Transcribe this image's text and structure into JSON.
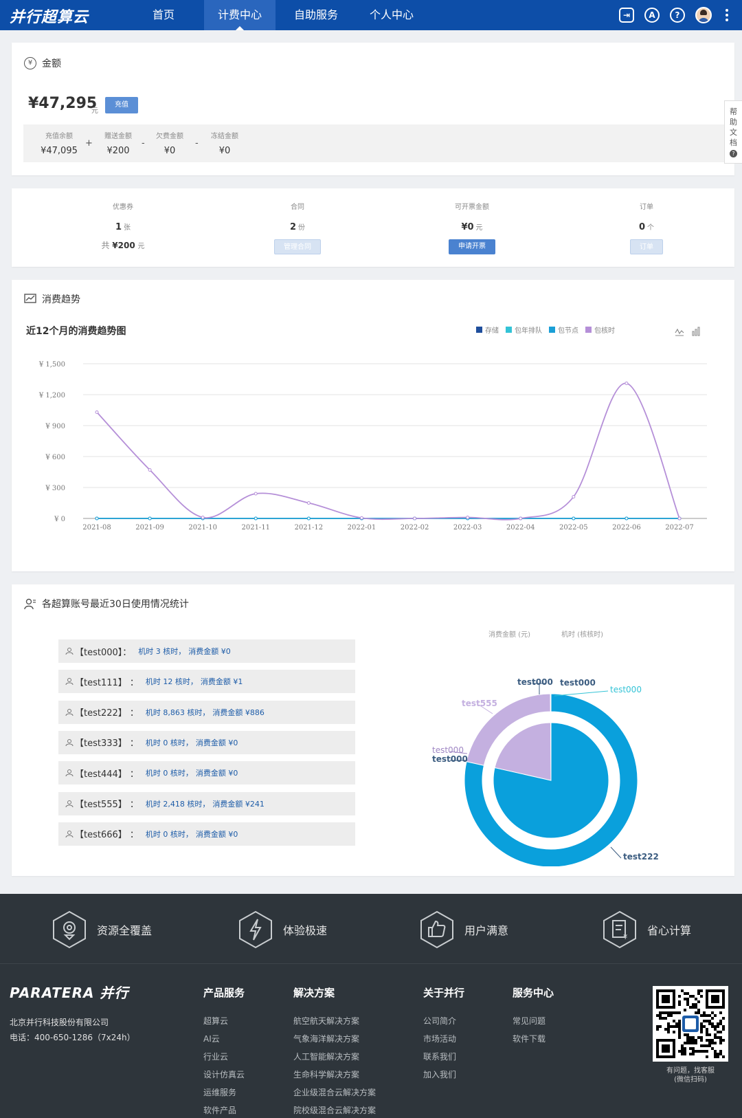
{
  "header": {
    "logo": "并行超算云",
    "nav": [
      "首页",
      "计费中心",
      "自助服务",
      "个人中心"
    ],
    "active_nav": "计费中心",
    "icons": [
      "login-icon",
      "alert-icon",
      "help-icon",
      "avatar",
      "more-icon"
    ]
  },
  "amount": {
    "title": "金额",
    "balance": "¥47,295",
    "unit": "元",
    "recharge": "充值",
    "items": [
      {
        "label": "充值余额",
        "value": "¥47,095"
      },
      {
        "label": "赠送金额",
        "value": "¥200"
      },
      {
        "label": "欠费金额",
        "value": "¥0"
      },
      {
        "label": "冻结金额",
        "value": "¥0"
      }
    ],
    "ops": [
      "+",
      "-",
      "-"
    ]
  },
  "help_tab": "帮助文档",
  "stats": [
    {
      "label": "优惠券",
      "value": "1",
      "unit": "张",
      "extra_prefix": "共",
      "extra_value": "¥200",
      "extra_unit": "元"
    },
    {
      "label": "合同",
      "value": "2",
      "unit": "份",
      "button": "管理合同"
    },
    {
      "label": "可开票金额",
      "value": "¥0",
      "unit": "元",
      "button": "申请开票"
    },
    {
      "label": "订单",
      "value": "0",
      "unit": "个",
      "button": "订单"
    }
  ],
  "trend": {
    "section_title": "消费趋势",
    "chart_title": "近12个月的消费趋势图"
  },
  "chart_data": {
    "type": "line",
    "title": "近12个月的消费趋势图",
    "categories": [
      "2021-08",
      "2021-09",
      "2021-10",
      "2021-11",
      "2021-12",
      "2022-01",
      "2022-02",
      "2022-03",
      "2022-04",
      "2022-05",
      "2022-06",
      "2022-07"
    ],
    "y_ticks": [
      "¥ 1,500",
      "¥ 1,200",
      "¥ 900",
      "¥ 600",
      "¥ 300",
      "¥ 0"
    ],
    "ylim": [
      0,
      1500
    ],
    "grid": true,
    "legend_position": "top-right",
    "series": [
      {
        "name": "存储",
        "color": "#1f4e9c",
        "values": [
          0,
          0,
          0,
          0,
          0,
          0,
          0,
          0,
          0,
          0,
          0,
          0
        ]
      },
      {
        "name": "包年排队",
        "color": "#33c3d6",
        "values": [
          0,
          0,
          0,
          0,
          0,
          0,
          0,
          0,
          0,
          0,
          0,
          0
        ]
      },
      {
        "name": "包节点",
        "color": "#1a9fd6",
        "values": [
          0,
          0,
          0,
          0,
          0,
          0,
          0,
          0,
          0,
          0,
          0,
          0
        ]
      },
      {
        "name": "包核时",
        "color": "#b58fd8",
        "values": [
          1030,
          470,
          10,
          240,
          150,
          5,
          0,
          10,
          0,
          210,
          1310,
          0
        ]
      }
    ]
  },
  "usage": {
    "title": "各超算账号最近30日使用情况统计",
    "rows": [
      {
        "name": "【test000】：",
        "hours": "机时 3 核时，",
        "cost": "消费金额 ¥0"
      },
      {
        "name": "【test111】 ：",
        "hours": "机时 12 核时，",
        "cost": "消费金额 ¥1"
      },
      {
        "name": "【test222】 ：",
        "hours": "机时 8,863 核时，",
        "cost": "消费金额 ¥886"
      },
      {
        "name": "【test333】 ：",
        "hours": "机时 0 核时，",
        "cost": "消费金额 ¥0"
      },
      {
        "name": "【test444】 ：",
        "hours": "机时 0 核时，",
        "cost": "消费金额 ¥0"
      },
      {
        "name": "【test555】 ：",
        "hours": "机时 2,418 核时，",
        "cost": "消费金额 ¥241"
      },
      {
        "name": "【test666】 ：",
        "hours": "机时 0 核时，",
        "cost": "消费金额 ¥0"
      }
    ],
    "pie_legend": [
      "消费金额 (元)",
      "机时 (核核时)"
    ],
    "pie": {
      "inner_name": "消费金额 (元)",
      "outer_name": "机时 (核核时)",
      "inner": [
        {
          "label": "test222",
          "value": 886,
          "color": "#0aa0dc"
        },
        {
          "label": "test555",
          "value": 241,
          "color": "#c4b0e0"
        },
        {
          "label": "test111",
          "value": 1,
          "color": "#0aa0dc"
        }
      ],
      "outer": [
        {
          "label": "test222",
          "value": 8863,
          "color": "#0aa0dc"
        },
        {
          "label": "test555",
          "value": 2418,
          "color": "#c4b0e0"
        },
        {
          "label": "test111",
          "value": 12,
          "color": "#0aa0dc"
        }
      ],
      "labels": [
        "test000",
        "test000",
        "test000",
        "test555",
        "test000",
        "test000",
        "test222"
      ]
    }
  },
  "footer": {
    "features": [
      "资源全覆盖",
      "体验极速",
      "用户满意",
      "省心计算"
    ],
    "logo": "PARATERA 并行",
    "company": "北京并行科技股份有限公司",
    "phone": "电话：400-650-1286（7x24h）",
    "columns": [
      {
        "title": "产品服务",
        "links": [
          "超算云",
          "AI云",
          "行业云",
          "设计仿真云",
          "运维服务",
          "软件产品"
        ]
      },
      {
        "title": "解决方案",
        "links": [
          "航空航天解决方案",
          "气象海洋解决方案",
          "人工智能解决方案",
          "生命科学解决方案",
          "企业级混合云解决方案",
          "院校级混合云解决方案"
        ]
      },
      {
        "title": "关于并行",
        "links": [
          "公司简介",
          "市场活动",
          "联系我们",
          "加入我们"
        ]
      },
      {
        "title": "服务中心",
        "links": [
          "常见问题",
          "软件下载"
        ]
      }
    ],
    "qr_note_1": "有问题，找客服",
    "qr_note_2": "(微信扫码)"
  }
}
